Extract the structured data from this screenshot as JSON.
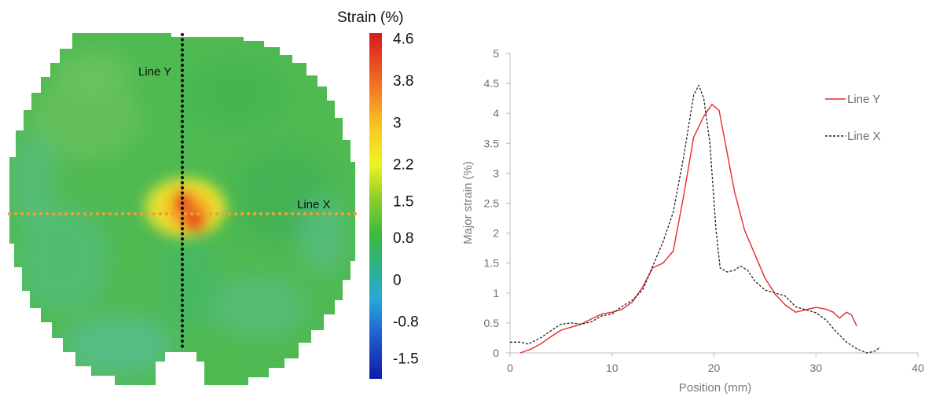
{
  "chart_data": [
    {
      "type": "heatmap",
      "colorbar": {
        "title": "Strain (%)",
        "ticks": [
          "4.6",
          "3.8",
          "3",
          "2.2",
          "1.5",
          "0.8",
          "0",
          "-0.8",
          "-1.5"
        ],
        "range": [
          -1.9,
          4.7
        ]
      },
      "annotations": [
        "Line Y",
        "Line X"
      ],
      "lines": [
        {
          "name": "Line Y",
          "orientation": "vertical",
          "color": "#111111"
        },
        {
          "name": "Line X",
          "orientation": "horizontal",
          "color": "#e8a23a"
        }
      ]
    },
    {
      "type": "line",
      "title": "",
      "xlabel": "Position (mm)",
      "ylabel": "Major strain (%)",
      "xlim": [
        0,
        40
      ],
      "ylim": [
        0,
        5
      ],
      "x_ticks": [
        "0",
        "10",
        "20",
        "30",
        "40"
      ],
      "y_ticks": [
        "0",
        "0.5",
        "1",
        "1.5",
        "2",
        "2.5",
        "3",
        "3.5",
        "4",
        "4.5",
        "5"
      ],
      "grid": false,
      "legend_position": "top-right",
      "series": [
        {
          "name": "Line Y",
          "color": "#e8282b",
          "style": "solid",
          "points": [
            [
              1.0,
              0.0
            ],
            [
              2,
              0.06
            ],
            [
              3,
              0.15
            ],
            [
              4,
              0.27
            ],
            [
              5,
              0.38
            ],
            [
              6,
              0.43
            ],
            [
              7,
              0.48
            ],
            [
              8,
              0.57
            ],
            [
              9,
              0.65
            ],
            [
              10,
              0.68
            ],
            [
              11,
              0.73
            ],
            [
              12,
              0.85
            ],
            [
              13,
              1.1
            ],
            [
              14,
              1.42
            ],
            [
              15,
              1.5
            ],
            [
              16,
              1.7
            ],
            [
              17,
              2.6
            ],
            [
              18,
              3.6
            ],
            [
              19,
              3.95
            ],
            [
              19.8,
              4.15
            ],
            [
              20.5,
              4.05
            ],
            [
              21,
              3.6
            ],
            [
              22,
              2.7
            ],
            [
              23,
              2.05
            ],
            [
              24,
              1.65
            ],
            [
              25,
              1.25
            ],
            [
              26,
              0.98
            ],
            [
              27,
              0.8
            ],
            [
              28,
              0.68
            ],
            [
              29,
              0.72
            ],
            [
              30,
              0.76
            ],
            [
              31,
              0.73
            ],
            [
              31.7,
              0.68
            ],
            [
              32.3,
              0.58
            ],
            [
              33,
              0.68
            ],
            [
              33.5,
              0.63
            ],
            [
              34,
              0.45
            ]
          ]
        },
        {
          "name": "Line X",
          "color": "#222222",
          "style": "dashed",
          "points": [
            [
              0,
              0.18
            ],
            [
              1,
              0.18
            ],
            [
              1.8,
              0.15
            ],
            [
              3,
              0.25
            ],
            [
              4,
              0.37
            ],
            [
              5,
              0.48
            ],
            [
              6,
              0.5
            ],
            [
              7,
              0.48
            ],
            [
              8,
              0.52
            ],
            [
              9,
              0.62
            ],
            [
              10,
              0.65
            ],
            [
              11,
              0.78
            ],
            [
              12,
              0.88
            ],
            [
              13,
              1.05
            ],
            [
              14,
              1.45
            ],
            [
              15,
              1.85
            ],
            [
              16,
              2.35
            ],
            [
              17,
              3.25
            ],
            [
              18,
              4.3
            ],
            [
              18.5,
              4.47
            ],
            [
              19,
              4.25
            ],
            [
              19.6,
              3.5
            ],
            [
              20.2,
              2.05
            ],
            [
              20.6,
              1.42
            ],
            [
              21.3,
              1.35
            ],
            [
              22,
              1.38
            ],
            [
              22.6,
              1.45
            ],
            [
              23.3,
              1.38
            ],
            [
              24,
              1.2
            ],
            [
              25,
              1.05
            ],
            [
              26,
              1.0
            ],
            [
              27,
              0.95
            ],
            [
              28,
              0.77
            ],
            [
              29,
              0.72
            ],
            [
              30,
              0.67
            ],
            [
              31,
              0.55
            ],
            [
              32,
              0.35
            ],
            [
              33,
              0.18
            ],
            [
              34,
              0.07
            ],
            [
              35,
              0.0
            ],
            [
              35.8,
              0.03
            ],
            [
              36.3,
              0.1
            ]
          ]
        }
      ]
    }
  ]
}
